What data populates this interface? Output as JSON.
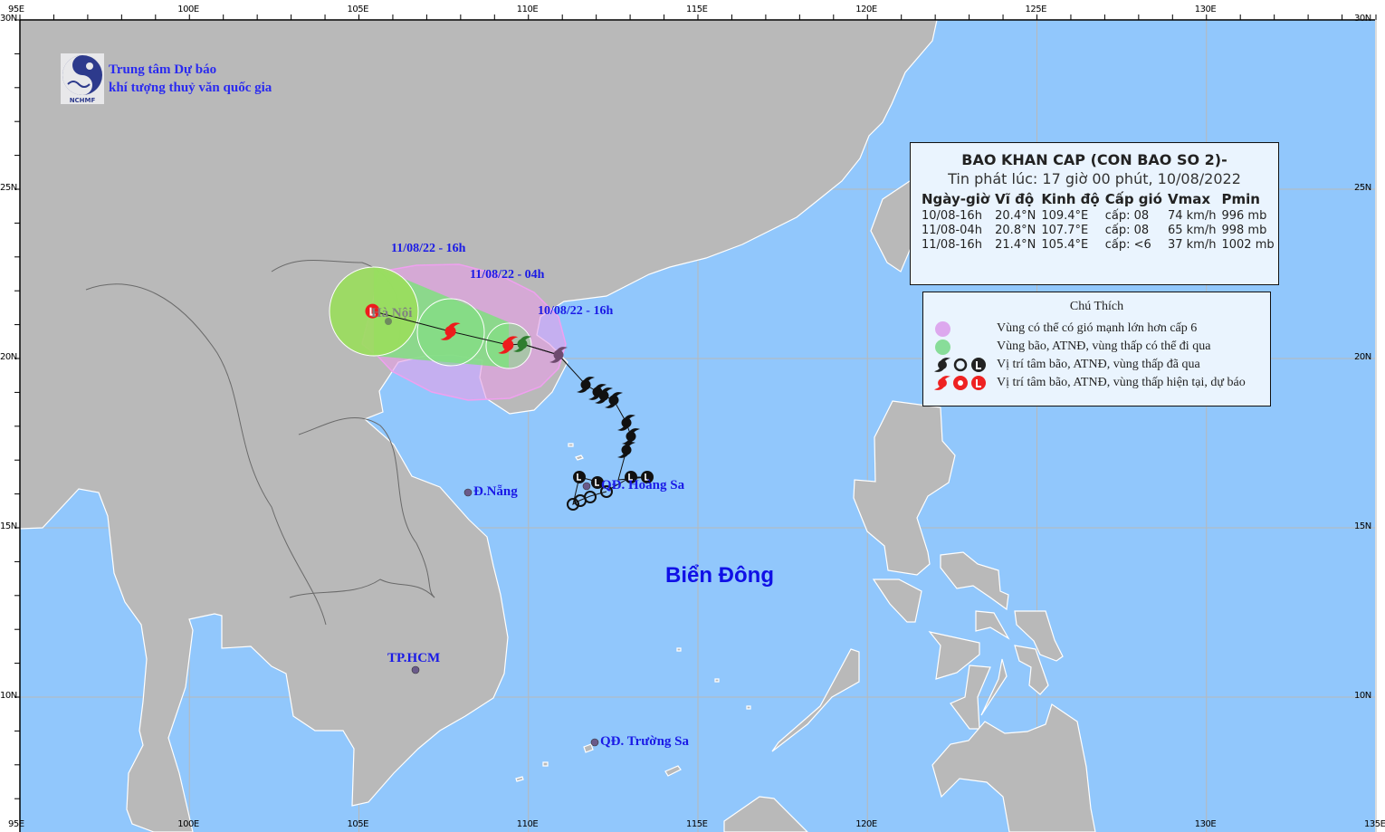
{
  "header": {
    "org_line1": "Trung tâm Dự báo",
    "org_line2": "khí tượng thuỷ văn quốc gia",
    "logo_text": "NCHMF"
  },
  "axes": {
    "top_lon_labels": [
      "95E",
      "100E",
      "105E",
      "110E",
      "115E",
      "120E",
      "125E",
      "130E"
    ],
    "bottom_lon_labels": [
      "95E",
      "100E",
      "105E",
      "110E",
      "115E",
      "120E",
      "130E",
      "135E"
    ],
    "lat_labels": [
      "30N",
      "25N",
      "20N",
      "15N",
      "10N"
    ]
  },
  "info_box": {
    "title": "BAO KHAN CAP (CON BAO SO 2)-",
    "issued": "Tin phát lúc: 17 giờ 00 phút, 10/08/2022",
    "columns": [
      "Ngày-giờ",
      "Vĩ độ",
      "Kinh độ",
      "Cấp gió",
      "Vmax",
      "Pmin"
    ],
    "rows": [
      {
        "time": "10/08-16h",
        "lat": "20.4°N",
        "lon": "109.4°E",
        "wind": "cấp: 08",
        "vmax": "74 km/h",
        "pmin": "996 mb"
      },
      {
        "time": "11/08-04h",
        "lat": "20.8°N",
        "lon": "107.7°E",
        "wind": "cấp: 08",
        "vmax": "65 km/h",
        "pmin": "998 mb"
      },
      {
        "time": "11/08-16h",
        "lat": "21.4°N",
        "lon": "105.4°E",
        "wind": "cấp: <6",
        "vmax": "37 km/h",
        "pmin": "1002 mb"
      }
    ]
  },
  "legend": {
    "title": "Chú Thích",
    "items": [
      {
        "label": "Vùng có thể có gió mạnh lớn hơn cấp 6",
        "color": "#dda8ee"
      },
      {
        "label": "Vùng bão, ATNĐ, vùng thấp có thể đi qua",
        "color": "#88dd99"
      },
      {
        "label": "Vị trí tâm bão, ATNĐ, vùng thấp đã qua",
        "color": "#222222"
      },
      {
        "label": "Vị trí tâm bão, ATNĐ, vùng thấp hiện tại, dự báo",
        "color": "#ee2222"
      }
    ]
  },
  "track_labels": [
    "11/08/22 - 16h",
    "11/08/22 - 04h",
    "10/08/22 - 16h"
  ],
  "places": {
    "hanoi": "Hà Nội",
    "danang": "Đ.Nẵng",
    "hoangsa": "QĐ. Hoàng Sa",
    "hcm": "TP.HCM",
    "truongsa": "QĐ. Trường Sa",
    "sea": "Biển Đông"
  },
  "colors": {
    "land": "#b9b9b9",
    "sea": "#91c7fc",
    "wind_zone": "#e79ee7",
    "storm_zone": "#7fe07f",
    "forecast": "#ee1c1c",
    "past": "#111111",
    "label_blue": "#1a1ae6"
  }
}
